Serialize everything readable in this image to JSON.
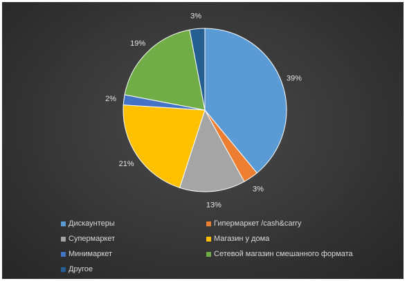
{
  "chart_data": {
    "type": "pie",
    "start_angle_deg": 0,
    "direction": "clockwise",
    "legend_position": "bottom",
    "slices": [
      {
        "label": "Дискаунтеры",
        "value": 39,
        "value_label": "39%",
        "color": "#5b9bd5"
      },
      {
        "label": "Гипермаркет /cash&carry",
        "value": 3,
        "value_label": "3%",
        "color": "#ed7d31"
      },
      {
        "label": "Супермаркет",
        "value": 13,
        "value_label": "13%",
        "color": "#a5a5a5"
      },
      {
        "label": "Магазин у дома",
        "value": 21,
        "value_label": "21%",
        "color": "#ffc000"
      },
      {
        "label": "Минимаркет",
        "value": 2,
        "value_label": "2%",
        "color": "#4472c4"
      },
      {
        "label": "Сетевой магазин смешанного формата",
        "value": 19,
        "value_label": "19%",
        "color": "#70ad47"
      },
      {
        "label": "Другое",
        "value": 3,
        "value_label": "3%",
        "color": "#255e91"
      }
    ]
  }
}
